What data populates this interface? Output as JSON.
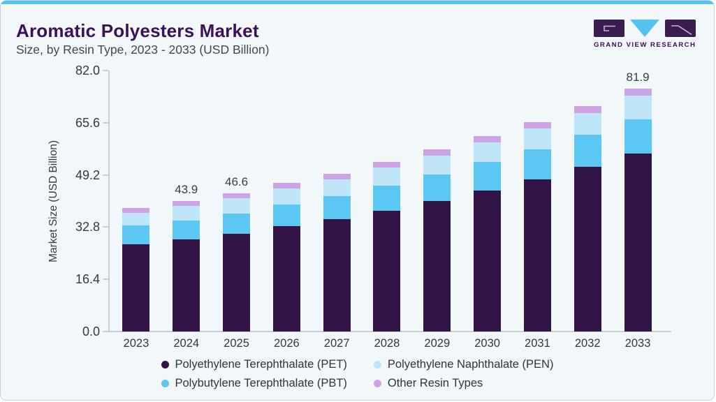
{
  "header": {
    "title": "Aromatic Polyesters Market",
    "subtitle": "Size, by Resin Type, 2023 - 2033 (USD Billion)"
  },
  "logo": {
    "text": "GRAND VIEW RESEARCH"
  },
  "chart_data": {
    "type": "stacked-bar",
    "title": "Aromatic Polyesters Market Size, by Resin Type, 2023 - 2033 (USD Billion)",
    "ylabel": "Market Size (USD Billion)",
    "xlabel": "",
    "ylim": [
      0,
      82
    ],
    "ytick_labels": [
      "0.0",
      "16.4",
      "32.8",
      "49.2",
      "65.6",
      "82.0"
    ],
    "grid": false,
    "legend_position": "bottom",
    "categories": [
      "2023",
      "2024",
      "2025",
      "2026",
      "2027",
      "2028",
      "2029",
      "2030",
      "2031",
      "2032",
      "2033"
    ],
    "series": [
      {
        "key": "pet",
        "name": "Polyethylene Terephthalate (PET)",
        "color": "#321447",
        "values": [
          29.5,
          31.0,
          32.9,
          35.6,
          37.9,
          40.8,
          44.0,
          47.6,
          51.4,
          55.5,
          60.1
        ]
      },
      {
        "key": "pbt",
        "name": "Polybutylene Terephthalate (PBT)",
        "color": "#5bc7f2",
        "values": [
          6.2,
          6.5,
          6.9,
          7.3,
          7.8,
          8.3,
          8.9,
          9.5,
          10.1,
          10.8,
          11.4
        ]
      },
      {
        "key": "pen",
        "name": "Polyethylene Naphthalate (PEN)",
        "color": "#bee6f8",
        "values": [
          4.4,
          4.8,
          5.1,
          5.4,
          5.7,
          6.2,
          6.5,
          6.7,
          7.0,
          7.4,
          8.0
        ]
      },
      {
        "key": "other",
        "name": "Other Resin Types",
        "color": "#cda3e6",
        "values": [
          1.6,
          1.6,
          1.7,
          1.8,
          1.9,
          1.9,
          2.0,
          2.1,
          2.2,
          2.3,
          2.4
        ]
      }
    ],
    "bar_totals": [
      41.7,
      43.9,
      46.6,
      50.1,
      53.3,
      57.2,
      61.4,
      65.9,
      70.7,
      76.0,
      81.9
    ],
    "bar_total_labels": {
      "2024": "43.9",
      "2025": "46.6",
      "2033": "81.9"
    },
    "legend_order": [
      "pet",
      "pen",
      "pbt",
      "other"
    ]
  }
}
